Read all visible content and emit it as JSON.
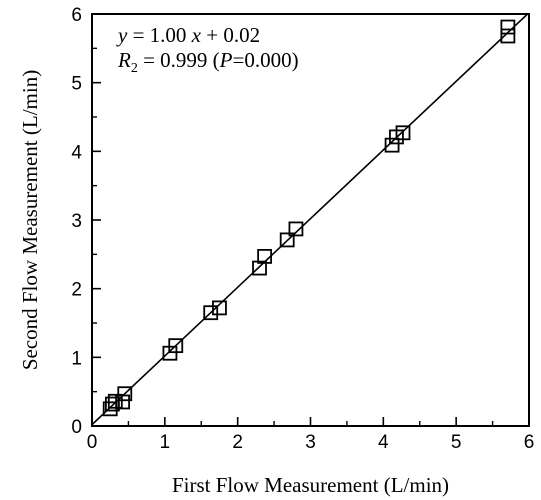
{
  "chart_data": {
    "type": "scatter",
    "xlabel": "First Flow Measurement (L/min)",
    "ylabel": "Second Flow Measurement (L/min)",
    "xlim": [
      0,
      6
    ],
    "ylim": [
      0,
      6
    ],
    "x_ticks": [
      "0",
      "1",
      "2",
      "3",
      "4",
      "5",
      "6"
    ],
    "y_ticks": [
      "0",
      "1",
      "2",
      "3",
      "4",
      "5",
      "6"
    ],
    "grid": false,
    "marker": "open-square",
    "annotation": {
      "line1": {
        "y": "y",
        "eq": " = 1.00 ",
        "x": "x",
        "rest": " + 0.02"
      },
      "line2": {
        "r": "R",
        "sub": "2",
        "eq": " = 0.999 (",
        "p": "P",
        "rest": "=0.000)"
      }
    },
    "fit_line": {
      "slope": 1.0,
      "intercept": 0.02
    },
    "points": [
      {
        "x": 0.25,
        "y": 0.25
      },
      {
        "x": 0.28,
        "y": 0.32
      },
      {
        "x": 0.32,
        "y": 0.36
      },
      {
        "x": 0.42,
        "y": 0.35
      },
      {
        "x": 0.45,
        "y": 0.47
      },
      {
        "x": 1.07,
        "y": 1.06
      },
      {
        "x": 1.15,
        "y": 1.17
      },
      {
        "x": 1.63,
        "y": 1.65
      },
      {
        "x": 1.75,
        "y": 1.72
      },
      {
        "x": 2.3,
        "y": 2.3
      },
      {
        "x": 2.37,
        "y": 2.47
      },
      {
        "x": 2.68,
        "y": 2.71
      },
      {
        "x": 2.8,
        "y": 2.87
      },
      {
        "x": 4.12,
        "y": 4.09
      },
      {
        "x": 4.18,
        "y": 4.21
      },
      {
        "x": 4.27,
        "y": 4.27
      },
      {
        "x": 5.71,
        "y": 5.68
      },
      {
        "x": 5.71,
        "y": 5.81
      }
    ]
  }
}
